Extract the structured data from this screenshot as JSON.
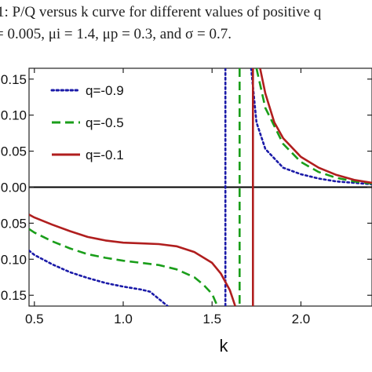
{
  "caption": {
    "line1": "1: P/Q versus k curve for different values of positive q",
    "line2": "= 0.005, μi = 1.4, μp = 0.3, and σ = 0.7."
  },
  "chart_data": {
    "type": "line",
    "title": "",
    "xlabel": "k",
    "ylabel": "",
    "xlim": [
      0.47,
      2.4
    ],
    "ylim": [
      -0.165,
      0.165
    ],
    "x_ticks": [
      {
        "value": 0.5,
        "label": "0.5"
      },
      {
        "value": 1.0,
        "label": "1.0"
      },
      {
        "value": 1.5,
        "label": "1.5"
      },
      {
        "value": 2.0,
        "label": "2.0"
      }
    ],
    "y_ticks": [
      {
        "value": 0.15,
        "label": "0.15"
      },
      {
        "value": 0.1,
        "label": "0.10"
      },
      {
        "value": 0.05,
        "label": "0.05"
      },
      {
        "value": 0.0,
        "label": "0.00"
      },
      {
        "value": -0.05,
        "label": "0.05"
      },
      {
        "value": -0.1,
        "label": "0.10"
      },
      {
        "value": -0.15,
        "label": "0.15"
      }
    ],
    "legend_position": "top-left",
    "series": [
      {
        "name": "q=-0.9",
        "color": "#1a1aa8",
        "dash": "dotted",
        "asymptote": 1.575,
        "left": [
          [
            0.47,
            -0.088
          ],
          [
            0.5,
            -0.094
          ],
          [
            0.6,
            -0.107
          ],
          [
            0.7,
            -0.118
          ],
          [
            0.8,
            -0.126
          ],
          [
            0.9,
            -0.133
          ],
          [
            1.0,
            -0.138
          ],
          [
            1.1,
            -0.142
          ],
          [
            1.15,
            -0.145
          ],
          [
            1.2,
            -0.155
          ],
          [
            1.25,
            -0.165
          ]
        ],
        "right": [
          [
            1.72,
            0.165
          ],
          [
            1.75,
            0.09
          ],
          [
            1.8,
            0.053
          ],
          [
            1.9,
            0.027
          ],
          [
            2.0,
            0.018
          ],
          [
            2.1,
            0.012
          ],
          [
            2.2,
            0.008
          ],
          [
            2.3,
            0.006
          ],
          [
            2.4,
            0.004
          ]
        ]
      },
      {
        "name": "q=-0.5",
        "color": "#1a9e1a",
        "dash": "dashed",
        "asymptote": 1.655,
        "left": [
          [
            0.47,
            -0.058
          ],
          [
            0.5,
            -0.063
          ],
          [
            0.6,
            -0.075
          ],
          [
            0.7,
            -0.085
          ],
          [
            0.8,
            -0.093
          ],
          [
            0.9,
            -0.098
          ],
          [
            1.0,
            -0.102
          ],
          [
            1.1,
            -0.105
          ],
          [
            1.2,
            -0.108
          ],
          [
            1.3,
            -0.114
          ],
          [
            1.4,
            -0.125
          ],
          [
            1.45,
            -0.135
          ],
          [
            1.5,
            -0.148
          ],
          [
            1.53,
            -0.165
          ]
        ],
        "right": [
          [
            1.75,
            0.165
          ],
          [
            1.8,
            0.11
          ],
          [
            1.9,
            0.06
          ],
          [
            2.0,
            0.035
          ],
          [
            2.1,
            0.021
          ],
          [
            2.2,
            0.013
          ],
          [
            2.3,
            0.008
          ],
          [
            2.4,
            0.005
          ]
        ]
      },
      {
        "name": "q=-0.1",
        "color": "#b01e1e",
        "dash": "solid",
        "asymptote": 1.73,
        "left": [
          [
            0.47,
            -0.038
          ],
          [
            0.5,
            -0.042
          ],
          [
            0.6,
            -0.052
          ],
          [
            0.7,
            -0.061
          ],
          [
            0.8,
            -0.069
          ],
          [
            0.9,
            -0.074
          ],
          [
            1.0,
            -0.077
          ],
          [
            1.1,
            -0.078
          ],
          [
            1.2,
            -0.079
          ],
          [
            1.3,
            -0.082
          ],
          [
            1.4,
            -0.09
          ],
          [
            1.5,
            -0.105
          ],
          [
            1.55,
            -0.12
          ],
          [
            1.6,
            -0.143
          ],
          [
            1.63,
            -0.165
          ]
        ],
        "right": [
          [
            1.77,
            0.165
          ],
          [
            1.8,
            0.13
          ],
          [
            1.85,
            0.09
          ],
          [
            1.9,
            0.068
          ],
          [
            2.0,
            0.042
          ],
          [
            2.1,
            0.027
          ],
          [
            2.2,
            0.017
          ],
          [
            2.3,
            0.01
          ],
          [
            2.4,
            0.006
          ]
        ]
      }
    ]
  }
}
